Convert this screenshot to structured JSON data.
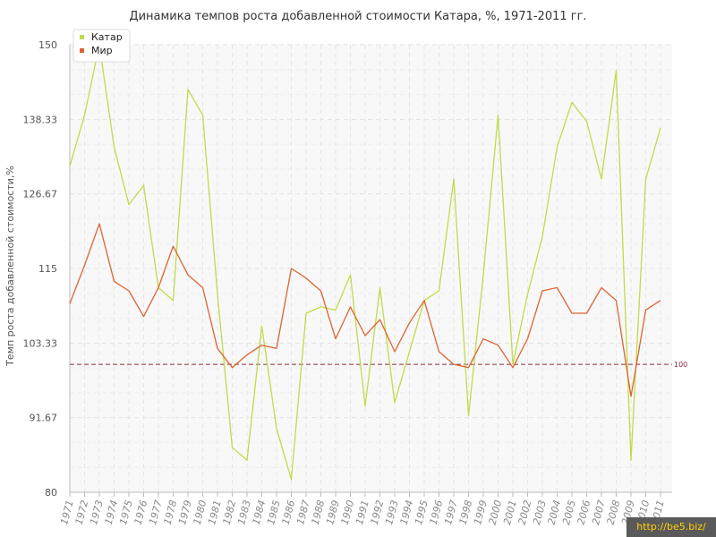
{
  "chart_data": {
    "type": "line",
    "title": "Динамика темпов роста добавленной стоимости Катара, %, 1971-2011 гг.",
    "ylabel": "Темп роста добавленной стоимости,%",
    "xlabel": "",
    "ylim": [
      80,
      150
    ],
    "yticks": [
      "80",
      "91.67",
      "103.33",
      "115",
      "126.67",
      "138.33",
      "150"
    ],
    "categories": [
      "1971",
      "1972",
      "1973",
      "1974",
      "1975",
      "1976",
      "1977",
      "1978",
      "1979",
      "1980",
      "1981",
      "1982",
      "1983",
      "1984",
      "1985",
      "1986",
      "1987",
      "1988",
      "1989",
      "1990",
      "1991",
      "1992",
      "1993",
      "1994",
      "1995",
      "1996",
      "1997",
      "1998",
      "1999",
      "2000",
      "2001",
      "2002",
      "2003",
      "2004",
      "2005",
      "2006",
      "2007",
      "2008",
      "2009",
      "2010",
      "2011"
    ],
    "series": [
      {
        "name": "Катар",
        "color": "#bedc4a",
        "values": [
          131,
          139,
          150,
          134,
          125,
          128,
          112,
          110,
          143,
          139,
          111,
          87,
          85,
          106,
          90,
          82,
          108,
          109,
          108.5,
          114,
          93.5,
          112,
          94,
          102,
          110,
          111.5,
          129,
          92,
          114,
          139,
          100,
          111,
          120,
          134,
          141,
          138,
          129,
          146,
          85,
          129,
          137
        ]
      },
      {
        "name": "Мир",
        "color": "#dc6432",
        "values": [
          109.5,
          115.5,
          122,
          113,
          111.5,
          107.5,
          112,
          118.5,
          114,
          112,
          102.5,
          99.5,
          101.5,
          103,
          102.5,
          115,
          113.5,
          111.5,
          104,
          109,
          104.5,
          107,
          102,
          106.5,
          110,
          102,
          100,
          99.5,
          104,
          103,
          99.5,
          104,
          111.5,
          112,
          108,
          108,
          112,
          110,
          95,
          108.5,
          110
        ]
      }
    ],
    "reference_line": {
      "value": 100,
      "label": "100",
      "color": "#8a2a3a"
    },
    "legend": {
      "placement": "top-left",
      "entries": [
        "Катар",
        "Мир"
      ]
    },
    "grid": true
  },
  "watermark": "http://be5.biz/"
}
